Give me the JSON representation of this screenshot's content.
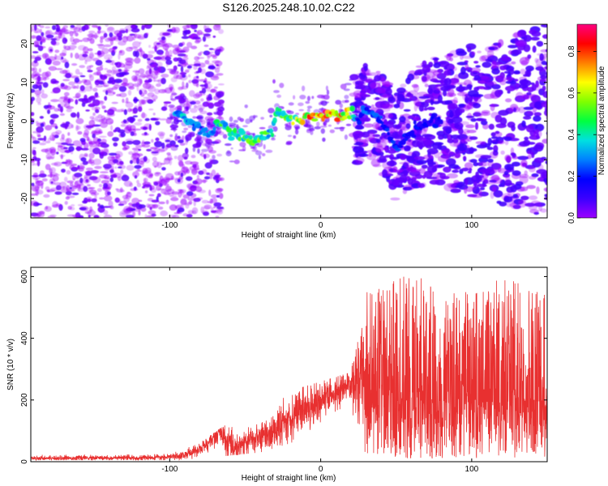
{
  "title": "S126.2025.248.10.02.C22",
  "colors": {
    "snr_line": "#e83030",
    "colorbar": [
      "#9b00ff",
      "#3b00ff",
      "#0000ff",
      "#0080ff",
      "#00e0e0",
      "#00ff40",
      "#80ff00",
      "#ffff00",
      "#ff8000",
      "#ff0000",
      "#ff0080"
    ]
  },
  "chart_data": [
    {
      "type": "heatmap",
      "title": "S126.2025.248.10.02.C22",
      "xlabel": "Height of straight line (km)",
      "ylabel": "Frequency (Hz)",
      "xlim": [
        -192,
        150
      ],
      "ylim": [
        -25,
        25
      ],
      "xticks": [
        -100,
        0,
        100
      ],
      "xtick_labels": [
        "-100",
        "0",
        "100"
      ],
      "yticks": [
        -20,
        -10,
        0,
        10,
        20
      ],
      "ytick_labels": [
        "-20",
        "-10",
        "0",
        "10",
        "20"
      ],
      "colorbar": {
        "label": "Normalized spectral amplitude",
        "range": [
          0,
          0.93
        ],
        "ticks": [
          0.0,
          0.2,
          0.4,
          0.6,
          0.8
        ],
        "tick_labels": [
          "0.0",
          "0.2",
          "0.4",
          "0.6",
          "0.8"
        ]
      },
      "ridge": {
        "x": [
          -96,
          -90,
          -80,
          -74,
          -68,
          -60,
          -50,
          -44,
          -38,
          -32,
          -29,
          -26,
          -20,
          -10,
          0,
          10,
          20,
          24,
          30,
          40,
          50,
          60,
          70,
          80
        ],
        "freq": [
          2,
          1,
          -2,
          -4,
          0,
          -3,
          -4,
          -5,
          -4,
          -3,
          3,
          2,
          0,
          1,
          2,
          2,
          2,
          0,
          3,
          0,
          -7,
          -3,
          0,
          0
        ],
        "amplitude": [
          0.35,
          0.4,
          0.3,
          0.35,
          0.5,
          0.5,
          0.55,
          0.6,
          0.55,
          0.45,
          0.55,
          0.5,
          0.6,
          0.8,
          0.92,
          0.85,
          0.7,
          0.2,
          0.3,
          0.25,
          0.25,
          0.2,
          0.2,
          0.2
        ]
      }
    },
    {
      "type": "line",
      "xlabel": "Height of straight line (km)",
      "ylabel": "SNR (10 * v/v)",
      "xlim": [
        -192,
        150
      ],
      "ylim": [
        0,
        630
      ],
      "xticks": [
        -100,
        0,
        100
      ],
      "xtick_labels": [
        "-100",
        "0",
        "100"
      ],
      "yticks": [
        0,
        200,
        400,
        600
      ],
      "ytick_labels": [
        "0",
        "200",
        "400",
        "600"
      ],
      "series": [
        {
          "name": "SNR",
          "x": [
            -192,
            -170,
            -150,
            -130,
            -110,
            -100,
            -90,
            -80,
            -75,
            -70,
            -67,
            -64,
            -60,
            -55,
            -50,
            -45,
            -40,
            -35,
            -30,
            -25,
            -20,
            -15,
            -10,
            -5,
            0,
            5,
            10,
            15,
            20,
            25,
            28,
            30,
            32,
            35,
            40,
            45,
            50,
            55,
            60,
            65,
            70,
            75,
            80,
            85,
            90,
            95,
            100,
            105,
            110,
            115,
            120,
            125,
            130,
            135,
            140,
            145,
            150
          ],
          "values": [
            12,
            12,
            12,
            12,
            13,
            15,
            22,
            40,
            60,
            80,
            100,
            70,
            55,
            50,
            60,
            70,
            80,
            90,
            100,
            120,
            150,
            160,
            175,
            190,
            200,
            210,
            220,
            240,
            250,
            260,
            280,
            270,
            250,
            230,
            240,
            235,
            225,
            215,
            210,
            205,
            200,
            205,
            210,
            215,
            205,
            210,
            200,
            205,
            210,
            200,
            210,
            205,
            200,
            210,
            205,
            200,
            205
          ],
          "noise_band": {
            "x": [
              -192,
              -100,
              -80,
              -60,
              -40,
              -20,
              0,
              20,
              30,
              40,
              60,
              80,
              100,
              120,
              150
            ],
            "low": [
              5,
              5,
              10,
              20,
              30,
              60,
              110,
              170,
              20,
              10,
              10,
              10,
              10,
              10,
              10
            ],
            "high": [
              22,
              25,
              60,
              130,
              140,
              230,
              260,
              290,
              560,
              560,
              620,
              550,
              560,
              600,
              560
            ]
          }
        }
      ]
    }
  ]
}
